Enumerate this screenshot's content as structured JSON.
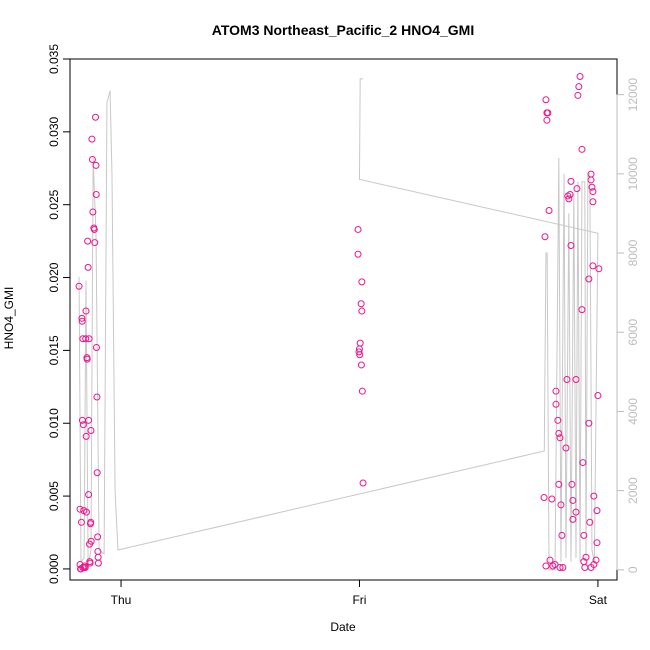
{
  "chart_data": {
    "type": "scatter",
    "title": "ATOM3 Northeast_Pacific_2 HNO4_GMI",
    "xlabel": "Date",
    "ylabel": "HNO4_GMI",
    "xlim": [
      -0.214,
      2.08
    ],
    "xticks": [
      {
        "value": 0,
        "label": "Thu"
      },
      {
        "value": 1,
        "label": "Fri"
      },
      {
        "value": 2,
        "label": "Sat"
      }
    ],
    "ylim": [
      -0.00076,
      0.035
    ],
    "yticks": [
      {
        "value": 0,
        "label": "0.000"
      },
      {
        "value": 0.005,
        "label": "0.005"
      },
      {
        "value": 0.01,
        "label": "0.010"
      },
      {
        "value": 0.015,
        "label": "0.015"
      },
      {
        "value": 0.02,
        "label": "0.020"
      },
      {
        "value": 0.025,
        "label": "0.025"
      },
      {
        "value": 0.03,
        "label": "0.030"
      },
      {
        "value": 0.035,
        "label": "0.035"
      }
    ],
    "y2lim": [
      -257,
      12900
    ],
    "y2ticks": [
      0,
      2000,
      4000,
      6000,
      8000,
      10000,
      12000
    ],
    "series": [
      {
        "type": "scatter",
        "color": "#f0148c",
        "x": [
          -0.176,
          -0.172,
          -0.172,
          -0.17,
          -0.166,
          -0.164,
          -0.163,
          -0.162,
          -0.16,
          -0.158,
          -0.156,
          -0.155,
          -0.15,
          -0.148,
          -0.147,
          -0.146,
          -0.145,
          -0.143,
          -0.142,
          -0.14,
          -0.138,
          -0.136,
          -0.136,
          -0.134,
          -0.132,
          -0.131,
          -0.13,
          -0.128,
          -0.127,
          -0.126,
          -0.125,
          -0.122,
          -0.12,
          -0.118,
          -0.114,
          -0.112,
          -0.11,
          -0.107,
          -0.105,
          -0.104,
          -0.103,
          -0.101,
          -0.1,
          -0.098,
          -0.097,
          -0.096,
          -0.095,
          -0.168,
          -0.16,
          -0.153,
          0.994,
          0.994,
          1.01,
          1.007,
          1.01,
          1.003,
          1.0,
          0.998,
          1.001,
          1.008,
          1.012,
          1.015,
          1.778,
          1.774,
          1.782,
          1.782,
          1.786,
          1.79,
          1.786,
          1.795,
          1.807,
          1.799,
          1.811,
          1.824,
          1.824,
          1.832,
          1.836,
          1.841,
          1.836,
          1.845,
          1.849,
          1.853,
          1.866,
          1.87,
          1.874,
          1.878,
          1.883,
          1.887,
          1.887,
          1.891,
          1.895,
          1.895,
          1.908,
          1.912,
          1.908,
          1.916,
          1.92,
          1.925,
          1.933,
          1.933,
          1.937,
          1.941,
          1.941,
          1.95,
          1.962,
          1.971,
          1.971,
          1.975,
          1.979,
          1.979,
          1.979,
          1.983,
          1.996,
          1.996,
          2.0,
          2.004,
          1.962,
          1.966,
          1.983,
          1.992,
          1.971,
          1.945,
          1.82,
          1.841
        ],
        "values": [
          0.0194,
          0.0041,
          0.0003,
          0.0,
          0.0032,
          0.0172,
          0.017,
          0.0102,
          0.0158,
          0.0099,
          0.004,
          0.0001,
          0.0001,
          0.0158,
          0.0177,
          0.0091,
          0.0039,
          0.0145,
          0.0144,
          0.0225,
          0.0207,
          0.0051,
          0.0102,
          0.0158,
          0.0017,
          0.0005,
          0.0004,
          0.0031,
          0.0032,
          0.0095,
          0.0019,
          0.0295,
          0.0281,
          0.0245,
          0.0234,
          0.0233,
          0.0224,
          0.031,
          0.0277,
          0.0257,
          0.0152,
          0.0118,
          0.0066,
          0.0022,
          0.0012,
          0.0008,
          0.0004,
          0.0,
          0.0001,
          0.0002,
          0.0233,
          0.0216,
          0.0197,
          0.0182,
          0.0177,
          0.0155,
          0.0151,
          0.0149,
          0.0147,
          0.014,
          0.0122,
          0.0059,
          0.0228,
          0.0049,
          0.0002,
          0.0322,
          0.0313,
          0.0313,
          0.0308,
          0.0246,
          0.0048,
          0.0006,
          0.0002,
          0.0122,
          0.0113,
          0.0102,
          0.0093,
          0.009,
          0.0058,
          0.0044,
          0.0023,
          0.0001,
          0.0083,
          0.013,
          0.0256,
          0.0254,
          0.0257,
          0.0222,
          0.0266,
          0.0058,
          0.0047,
          0.0034,
          0.0039,
          0.0261,
          0.013,
          0.0325,
          0.0331,
          0.0338,
          0.0288,
          0.0178,
          0.0073,
          0.0023,
          0.0005,
          0.0008,
          0.01,
          0.0267,
          0.0271,
          0.0262,
          0.0259,
          0.0252,
          0.0208,
          0.005,
          0.004,
          0.0018,
          0.0119,
          0.0206,
          0.0199,
          0.0032,
          0.0003,
          0.0006,
          0.0001,
          0.0001,
          0.0003,
          0.0001
        ]
      },
      {
        "type": "line",
        "axis": "y2",
        "color": "#c8c8c8",
        "x": [
          -0.176,
          -0.168,
          -0.155,
          -0.147,
          -0.138,
          -0.126,
          -0.117,
          -0.105,
          -0.092,
          -0.071,
          -0.059,
          -0.046,
          -0.038,
          -0.025,
          -0.013,
          1.775,
          1.782,
          1.787,
          1.795,
          1.82,
          1.836,
          1.845,
          1.858,
          1.866,
          1.878,
          1.887,
          1.899,
          1.908,
          1.916,
          1.925,
          1.933,
          1.945,
          1.95,
          1.958,
          1.966,
          1.975,
          1.985,
          2.0,
          1.0,
          1.003,
          1.015
        ],
        "values": [
          7400,
          200,
          300,
          7300,
          100,
          500,
          10400,
          8500,
          500,
          400,
          11800,
          12100,
          10000,
          2000,
          500,
          3000,
          8000,
          8000,
          0,
          0,
          10400,
          200,
          10000,
          300,
          9000,
          200,
          9500,
          300,
          9800,
          200,
          9800,
          9800,
          300,
          10000,
          10000,
          500,
          200,
          8500,
          9860,
          12400,
          12400
        ]
      }
    ]
  }
}
